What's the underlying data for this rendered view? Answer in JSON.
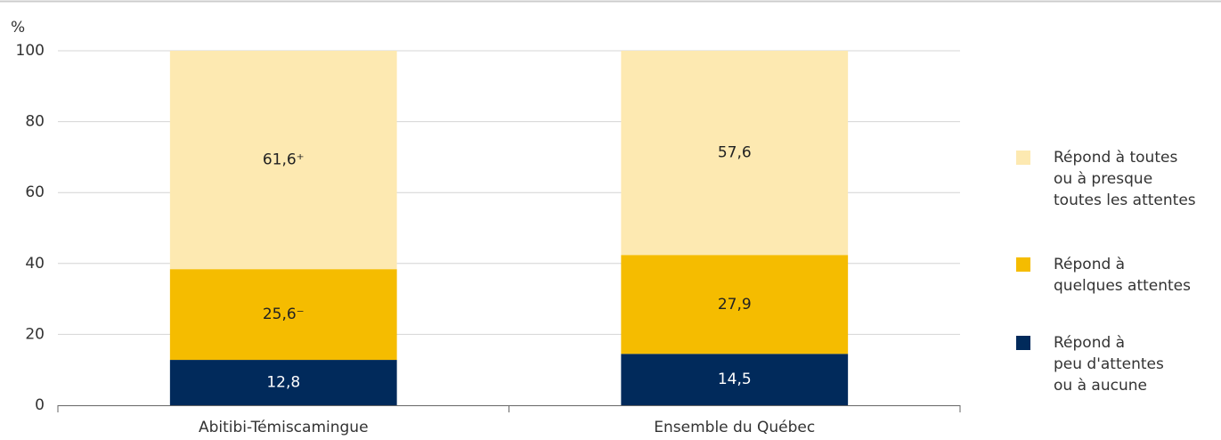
{
  "chart_data": {
    "type": "stacked_bar",
    "y_label": "%",
    "categories": [
      "Abitibi-Témiscamingue",
      "Ensemble du Québec"
    ],
    "series": [
      {
        "name": "Répond à peu d'attentes ou à aucune",
        "color": "#012a5b",
        "values": [
          12.8,
          14.5
        ],
        "value_labels": [
          "12,8",
          "14,5"
        ]
      },
      {
        "name": "Répond à quelques attentes",
        "color": "#f5bc00",
        "values": [
          25.6,
          27.9
        ],
        "value_labels": [
          "25,6⁻",
          "27,9"
        ]
      },
      {
        "name": "Répond à toutes ou à presque toutes les attentes",
        "color": "#fde9b1",
        "values": [
          61.6,
          57.6
        ],
        "value_labels": [
          "61,6⁺",
          "57,6"
        ]
      }
    ],
    "ylim": [
      0,
      100
    ],
    "yticks": [
      0,
      20,
      40,
      60,
      80,
      100
    ],
    "grid": true,
    "legend": "right"
  }
}
